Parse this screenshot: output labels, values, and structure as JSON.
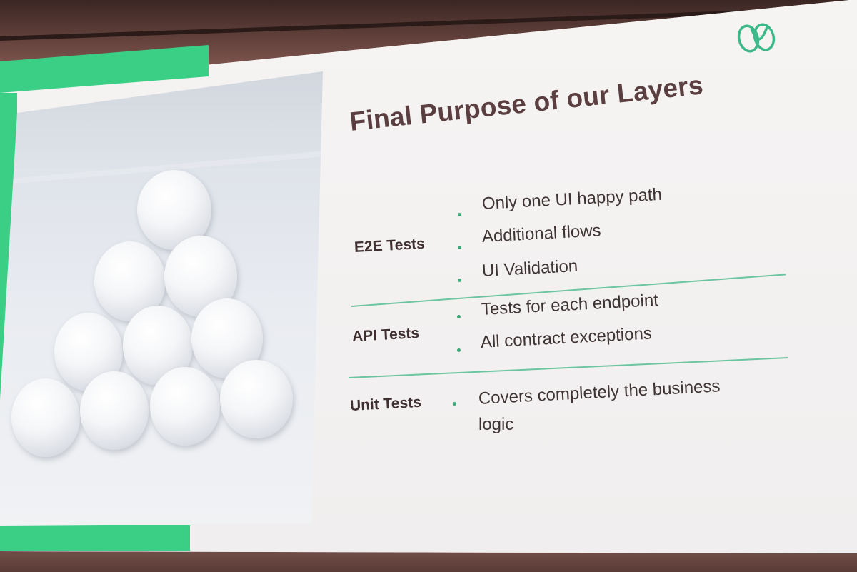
{
  "slide": {
    "title": "Final Purpose of our Layers",
    "layers": [
      {
        "label": "E2E Tests",
        "bullets": [
          "Only one UI  happy path",
          "Additional flows",
          "UI Validation"
        ]
      },
      {
        "label": "API Tests",
        "bullets": [
          "Tests for each endpoint",
          "All contract exceptions"
        ]
      },
      {
        "label": "Unit Tests",
        "bullets": [
          "Covers completely the business",
          "logic"
        ]
      }
    ]
  },
  "logo": {
    "icon": "infinity-loop-logo-icon",
    "color": "#3bb98a"
  },
  "colors": {
    "accent_green": "#3bcf86",
    "title": "#5a3e40",
    "divider": "#6cc4a0"
  }
}
